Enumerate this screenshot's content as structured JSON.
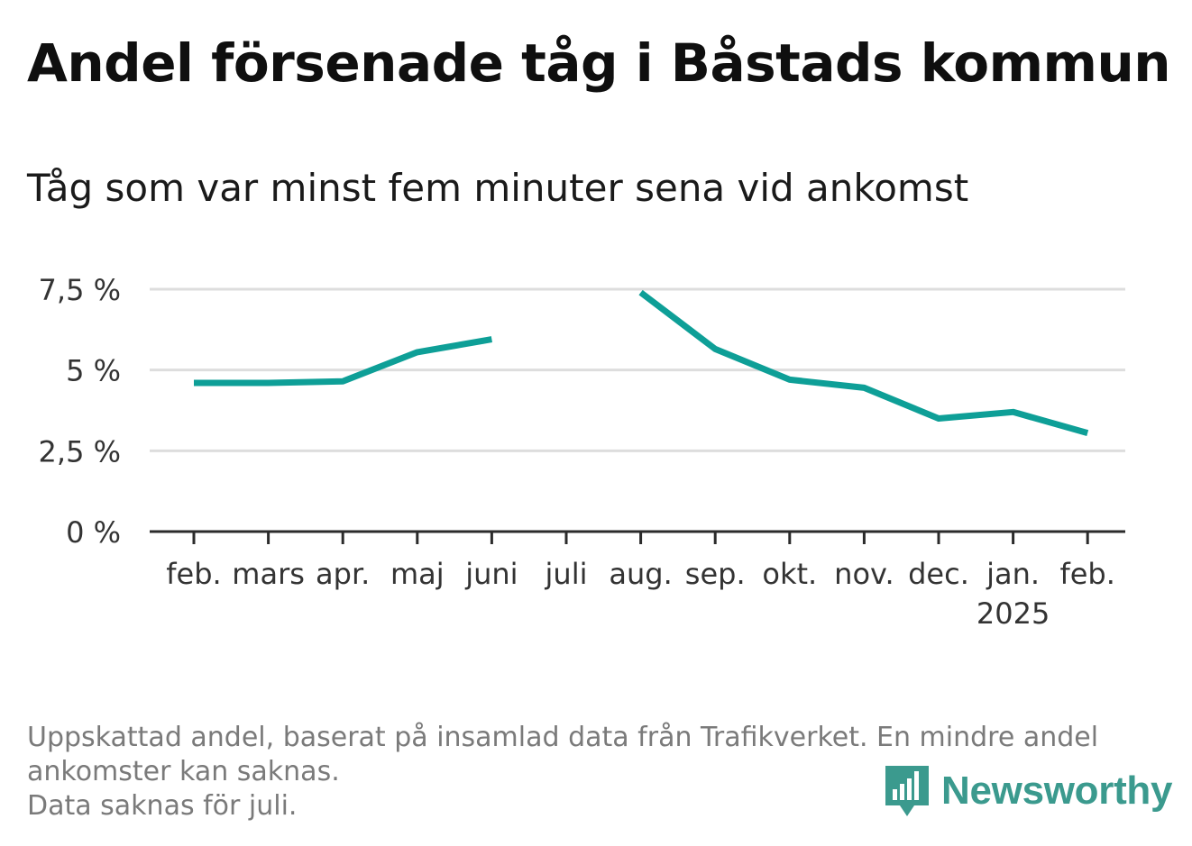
{
  "title": "Andel försenade tåg i Båstads kommun",
  "subtitle": "Tåg som var minst fem minuter sena vid ankomst",
  "footnote": {
    "line1": "Uppskattad andel, baserat på insamlad data från Trafikverket. En mindre andel",
    "line2": "ankomster kan saknas.",
    "line3": "Data saknas för juli."
  },
  "logo": {
    "text": "Newsworthy"
  },
  "colors": {
    "line": "#0e9f97",
    "grid": "#dddddd",
    "axis": "#2b2b2b",
    "brand": "#3b9a8e"
  },
  "chart_data": {
    "type": "line",
    "title": "Andel försenade tåg i Båstads kommun",
    "subtitle": "Tåg som var minst fem minuter sena vid ankomst",
    "categories": [
      "feb.",
      "mars",
      "apr.",
      "maj",
      "juni",
      "juli",
      "aug.",
      "sep.",
      "okt.",
      "nov.",
      "dec.",
      "jan.",
      "feb."
    ],
    "category_sublabels": [
      "",
      "",
      "",
      "",
      "",
      "",
      "",
      "",
      "",
      "",
      "",
      "2025",
      ""
    ],
    "series": [
      {
        "values": [
          4.6,
          4.6,
          4.65,
          5.55,
          5.95,
          null,
          7.4,
          5.65,
          4.7,
          4.45,
          3.5,
          3.7,
          3.05
        ]
      }
    ],
    "ylim": [
      0,
      7.5
    ],
    "yticks": [
      0,
      2.5,
      5,
      7.5
    ],
    "ytick_labels": [
      "0 %",
      "2,5 %",
      "5 %",
      "7,5 %"
    ],
    "grid": true,
    "xlabel": "",
    "ylabel": ""
  }
}
